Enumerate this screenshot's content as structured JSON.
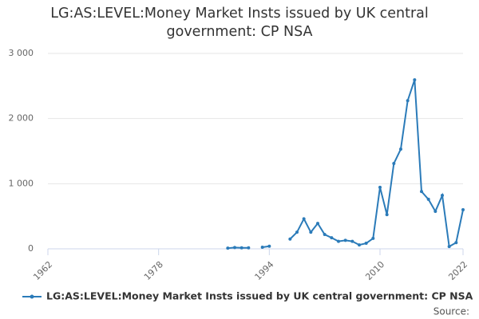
{
  "chart_data": {
    "type": "line",
    "title": "LG:AS:LEVEL:Money Market Insts issued by UK central government: CP NSA",
    "source": "Source:",
    "x": [
      1988,
      1989,
      1990,
      1991,
      1992,
      1993,
      1994,
      1995,
      1996,
      1997,
      1998,
      1999,
      2000,
      2001,
      2002,
      2003,
      2004,
      2005,
      2006,
      2007,
      2008,
      2009,
      2010,
      2011,
      2012,
      2013,
      2014,
      2015,
      2016,
      2017,
      2018,
      2019,
      2020,
      2021,
      2022
    ],
    "series": [
      {
        "name": "LG:AS:LEVEL:Money Market Insts issued by UK central government: CP NSA",
        "color": "#2b7bb9",
        "values": [
          10,
          20,
          15,
          15,
          null,
          25,
          40,
          null,
          null,
          150,
          255,
          460,
          255,
          390,
          220,
          170,
          115,
          130,
          115,
          60,
          85,
          160,
          945,
          525,
          1310,
          1530,
          2275,
          2595,
          880,
          760,
          575,
          820,
          35,
          95,
          600
        ]
      }
    ],
    "xlim": [
      1962,
      2022
    ],
    "xticks": [
      1962,
      1978,
      1994,
      2010,
      2022
    ],
    "ylim": [
      0,
      3000
    ],
    "yticks": [
      0,
      {
        "value": 1000,
        "label": "1 000"
      },
      {
        "value": 2000,
        "label": "2 000"
      },
      {
        "value": 3000,
        "label": "3 000"
      }
    ],
    "grid": true
  }
}
